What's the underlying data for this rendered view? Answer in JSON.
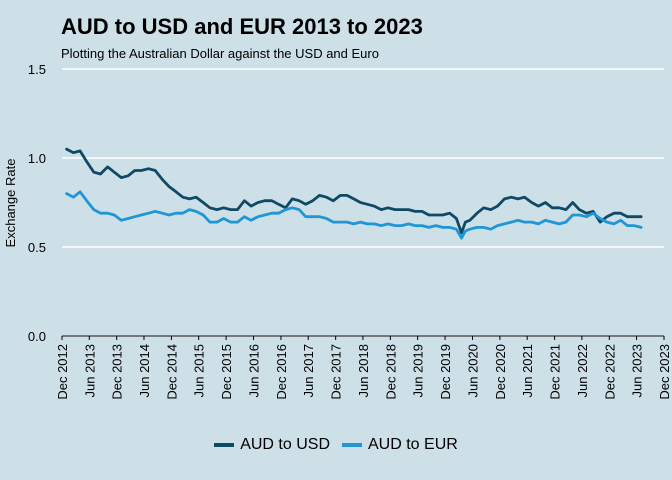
{
  "chart_data": {
    "type": "line",
    "title": "AUD to USD and EUR 2013 to 2023",
    "subtitle": "Plotting the Australian Dollar against the USD and Euro",
    "xlabel": "",
    "ylabel": "Exchange Rate",
    "ylim": [
      0,
      1.5
    ],
    "yticks": [
      "0.0",
      "0.5",
      "1.0",
      "1.5"
    ],
    "xlim": [
      "2012-12-01",
      "2023-12-01"
    ],
    "xticks": [
      "Dec 2012",
      "Jun 2013",
      "Dec 2013",
      "Jun 2014",
      "Dec 2014",
      "Jun 2015",
      "Dec 2015",
      "Jun 2016",
      "Dec 2016",
      "Jun 2017",
      "Dec 2017",
      "Jun 2018",
      "Dec 2018",
      "Jun 2019",
      "Dec 2019",
      "Jun 2020",
      "Dec 2020",
      "Jun 2021",
      "Dec 2021",
      "Jun 2022",
      "Dec 2022",
      "Jun 2023",
      "Dec 2023"
    ],
    "grid": true,
    "legend_position": "bottom",
    "x": [
      "2013-01-01",
      "2013-02-15",
      "2013-04-01",
      "2013-05-15",
      "2013-07-01",
      "2013-08-15",
      "2013-10-01",
      "2013-11-15",
      "2014-01-01",
      "2014-02-15",
      "2014-04-01",
      "2014-05-15",
      "2014-07-01",
      "2014-08-15",
      "2014-10-01",
      "2014-11-15",
      "2015-01-01",
      "2015-02-15",
      "2015-04-01",
      "2015-05-15",
      "2015-07-01",
      "2015-08-15",
      "2015-10-01",
      "2015-11-15",
      "2016-01-01",
      "2016-02-15",
      "2016-04-01",
      "2016-05-15",
      "2016-07-01",
      "2016-08-15",
      "2016-10-01",
      "2016-11-15",
      "2017-01-01",
      "2017-02-15",
      "2017-04-01",
      "2017-05-15",
      "2017-07-01",
      "2017-08-15",
      "2017-10-01",
      "2017-11-15",
      "2018-01-01",
      "2018-02-15",
      "2018-04-01",
      "2018-05-15",
      "2018-07-01",
      "2018-08-15",
      "2018-10-01",
      "2018-11-15",
      "2019-01-01",
      "2019-02-15",
      "2019-04-01",
      "2019-05-15",
      "2019-07-01",
      "2019-08-15",
      "2019-10-01",
      "2019-11-15",
      "2020-01-01",
      "2020-02-15",
      "2020-03-20",
      "2020-04-15",
      "2020-05-15",
      "2020-07-01",
      "2020-08-15",
      "2020-10-01",
      "2020-11-15",
      "2021-01-01",
      "2021-02-15",
      "2021-04-01",
      "2021-05-15",
      "2021-07-01",
      "2021-08-15",
      "2021-10-01",
      "2021-11-15",
      "2022-01-01",
      "2022-02-15",
      "2022-04-01",
      "2022-05-15",
      "2022-07-01",
      "2022-08-15",
      "2022-10-01",
      "2022-11-15",
      "2023-01-01",
      "2023-02-15",
      "2023-04-01",
      "2023-05-15",
      "2023-07-01"
    ],
    "series": [
      {
        "name": "AUD to USD",
        "color": "#0e4a66",
        "values": [
          1.05,
          1.03,
          1.04,
          0.98,
          0.92,
          0.91,
          0.95,
          0.92,
          0.89,
          0.9,
          0.93,
          0.93,
          0.94,
          0.93,
          0.88,
          0.84,
          0.81,
          0.78,
          0.77,
          0.78,
          0.75,
          0.72,
          0.71,
          0.72,
          0.71,
          0.71,
          0.76,
          0.73,
          0.75,
          0.76,
          0.76,
          0.74,
          0.72,
          0.77,
          0.76,
          0.74,
          0.76,
          0.79,
          0.78,
          0.76,
          0.79,
          0.79,
          0.77,
          0.75,
          0.74,
          0.73,
          0.71,
          0.72,
          0.71,
          0.71,
          0.71,
          0.7,
          0.7,
          0.68,
          0.68,
          0.68,
          0.69,
          0.66,
          0.58,
          0.64,
          0.65,
          0.69,
          0.72,
          0.71,
          0.73,
          0.77,
          0.78,
          0.77,
          0.78,
          0.75,
          0.73,
          0.75,
          0.72,
          0.72,
          0.71,
          0.75,
          0.71,
          0.69,
          0.7,
          0.64,
          0.67,
          0.69,
          0.69,
          0.67,
          0.67,
          0.67
        ]
      },
      {
        "name": "AUD to EUR",
        "color": "#1f96d6",
        "values": [
          0.8,
          0.78,
          0.81,
          0.76,
          0.71,
          0.69,
          0.69,
          0.68,
          0.65,
          0.66,
          0.67,
          0.68,
          0.69,
          0.7,
          0.69,
          0.68,
          0.69,
          0.69,
          0.71,
          0.7,
          0.68,
          0.64,
          0.64,
          0.66,
          0.64,
          0.64,
          0.67,
          0.65,
          0.67,
          0.68,
          0.69,
          0.69,
          0.71,
          0.72,
          0.71,
          0.67,
          0.67,
          0.67,
          0.66,
          0.64,
          0.64,
          0.64,
          0.63,
          0.64,
          0.63,
          0.63,
          0.62,
          0.63,
          0.62,
          0.62,
          0.63,
          0.62,
          0.62,
          0.61,
          0.62,
          0.61,
          0.61,
          0.6,
          0.55,
          0.59,
          0.6,
          0.61,
          0.61,
          0.6,
          0.62,
          0.63,
          0.64,
          0.65,
          0.64,
          0.64,
          0.63,
          0.65,
          0.64,
          0.63,
          0.64,
          0.68,
          0.68,
          0.67,
          0.69,
          0.66,
          0.64,
          0.63,
          0.65,
          0.62,
          0.62,
          0.61
        ]
      }
    ]
  }
}
